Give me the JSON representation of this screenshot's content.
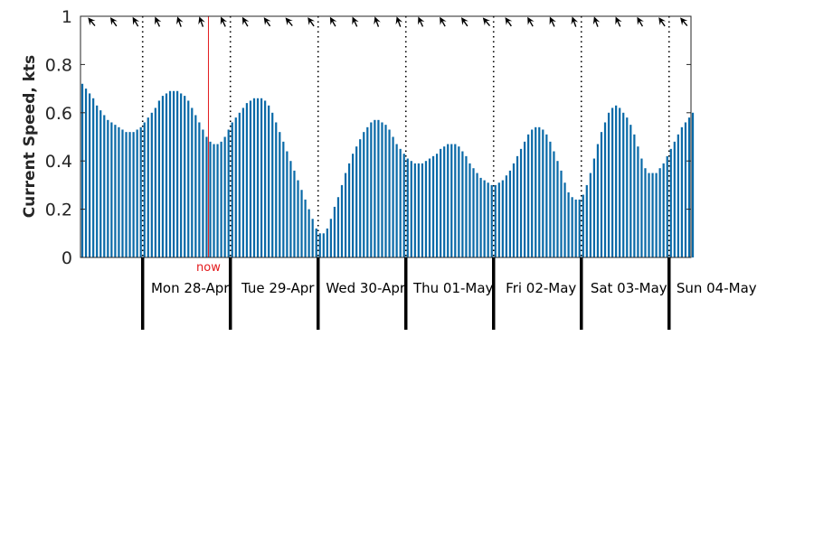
{
  "chart_data": {
    "type": "bar",
    "ylabel": "Current Speed, kts",
    "ylim": [
      0,
      1
    ],
    "yticks": [
      0,
      0.2,
      0.4,
      0.6,
      0.8,
      1
    ],
    "ytick_labels": [
      "0",
      "0.2",
      "0.4",
      "0.6",
      "0.8",
      "1"
    ],
    "bar_color": "#0a6aa8",
    "x_start_hour": -17,
    "x_end_hour": 150,
    "bar_interval_hours": 1,
    "values": [
      0.72,
      0.7,
      0.68,
      0.66,
      0.63,
      0.61,
      0.59,
      0.57,
      0.56,
      0.55,
      0.54,
      0.53,
      0.52,
      0.52,
      0.52,
      0.53,
      0.54,
      0.56,
      0.58,
      0.6,
      0.62,
      0.65,
      0.67,
      0.68,
      0.69,
      0.69,
      0.69,
      0.68,
      0.67,
      0.65,
      0.62,
      0.59,
      0.56,
      0.53,
      0.5,
      0.48,
      0.47,
      0.47,
      0.48,
      0.5,
      0.53,
      0.56,
      0.58,
      0.6,
      0.62,
      0.64,
      0.65,
      0.66,
      0.66,
      0.66,
      0.65,
      0.63,
      0.6,
      0.56,
      0.52,
      0.48,
      0.44,
      0.4,
      0.36,
      0.32,
      0.28,
      0.24,
      0.2,
      0.16,
      0.12,
      0.1,
      0.1,
      0.12,
      0.16,
      0.21,
      0.25,
      0.3,
      0.35,
      0.39,
      0.43,
      0.46,
      0.49,
      0.52,
      0.54,
      0.56,
      0.57,
      0.57,
      0.56,
      0.55,
      0.53,
      0.5,
      0.47,
      0.45,
      0.43,
      0.41,
      0.4,
      0.39,
      0.39,
      0.39,
      0.4,
      0.41,
      0.42,
      0.43,
      0.45,
      0.46,
      0.47,
      0.47,
      0.47,
      0.46,
      0.44,
      0.42,
      0.39,
      0.37,
      0.35,
      0.33,
      0.32,
      0.31,
      0.3,
      0.3,
      0.31,
      0.32,
      0.34,
      0.36,
      0.39,
      0.42,
      0.45,
      0.48,
      0.51,
      0.53,
      0.54,
      0.54,
      0.53,
      0.51,
      0.48,
      0.44,
      0.4,
      0.36,
      0.31,
      0.27,
      0.25,
      0.24,
      0.24,
      0.26,
      0.3,
      0.35,
      0.41,
      0.47,
      0.52,
      0.56,
      0.6,
      0.62,
      0.63,
      0.62,
      0.6,
      0.58,
      0.55,
      0.51,
      0.46,
      0.41,
      0.37,
      0.35,
      0.35,
      0.35,
      0.37,
      0.39,
      0.42,
      0.45,
      0.48,
      0.51,
      0.54,
      0.56,
      0.58,
      0.6
    ],
    "days": [
      {
        "label": "Mon 28-Apr",
        "start_hour": 0
      },
      {
        "label": "Tue 29-Apr",
        "start_hour": 24
      },
      {
        "label": "Wed 30-Apr",
        "start_hour": 48
      },
      {
        "label": "Thu 01-May",
        "start_hour": 72
      },
      {
        "label": "Fri 02-May",
        "start_hour": 96
      },
      {
        "label": "Sat 03-May",
        "start_hour": 120
      },
      {
        "label": "Sun 04-May",
        "start_hour": 144
      }
    ],
    "day_boundaries_hours": [
      0,
      24,
      48,
      72,
      96,
      120,
      144
    ],
    "now_marker": {
      "label": "now",
      "hour": 18,
      "color": "#e31a1c"
    },
    "direction_arrows": {
      "color": "#000000",
      "interval_hours": 6,
      "icon": "current-direction-arrow-icon"
    },
    "grid": "vertical dotted at day boundaries"
  }
}
